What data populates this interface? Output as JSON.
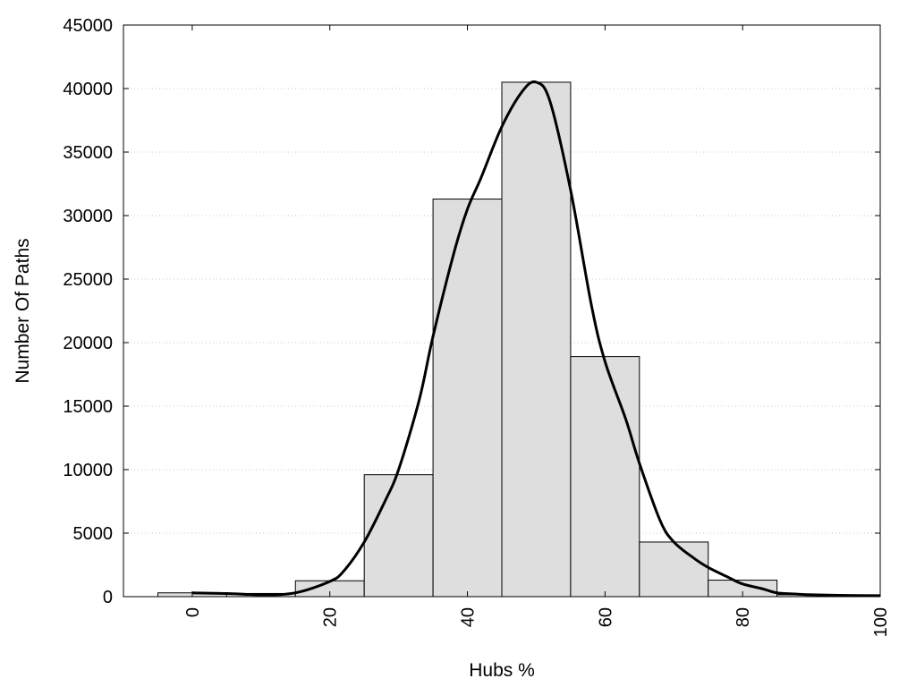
{
  "chart_data": {
    "type": "bar",
    "title": "",
    "xlabel": "Hubs %",
    "ylabel": "Number Of Paths",
    "xlim": [
      -10,
      100
    ],
    "ylim": [
      0,
      45000
    ],
    "grid": "horizontal dotted",
    "x_ticks": [
      0,
      20,
      40,
      60,
      80,
      100
    ],
    "y_ticks": [
      0,
      5000,
      10000,
      15000,
      20000,
      25000,
      30000,
      35000,
      40000,
      45000
    ],
    "bin_width": 10,
    "bars": [
      {
        "x": 0,
        "value": 300
      },
      {
        "x": 10,
        "value": 250
      },
      {
        "x": 20,
        "value": 1250
      },
      {
        "x": 30,
        "value": 9600
      },
      {
        "x": 40,
        "value": 31300
      },
      {
        "x": 50,
        "value": 40500
      },
      {
        "x": 60,
        "value": 18900
      },
      {
        "x": 70,
        "value": 4300
      },
      {
        "x": 80,
        "value": 1300
      },
      {
        "x": 90,
        "value": 150
      }
    ],
    "density_curve": {
      "x": [
        0,
        5,
        10,
        15,
        20,
        22,
        25,
        28,
        30,
        33,
        35,
        38,
        40,
        42,
        45,
        48,
        50,
        52,
        55,
        58,
        60,
        63,
        65,
        68,
        70,
        73,
        75,
        78,
        80,
        83,
        85,
        88,
        90,
        95,
        100
      ],
      "y": [
        300,
        250,
        150,
        300,
        1200,
        2000,
        4300,
        7500,
        10000,
        15500,
        20500,
        27000,
        30500,
        33000,
        37000,
        39800,
        40500,
        39000,
        32000,
        23000,
        18500,
        14000,
        10500,
        6000,
        4300,
        3000,
        2300,
        1500,
        1000,
        600,
        300,
        200,
        150,
        100,
        80
      ]
    }
  }
}
